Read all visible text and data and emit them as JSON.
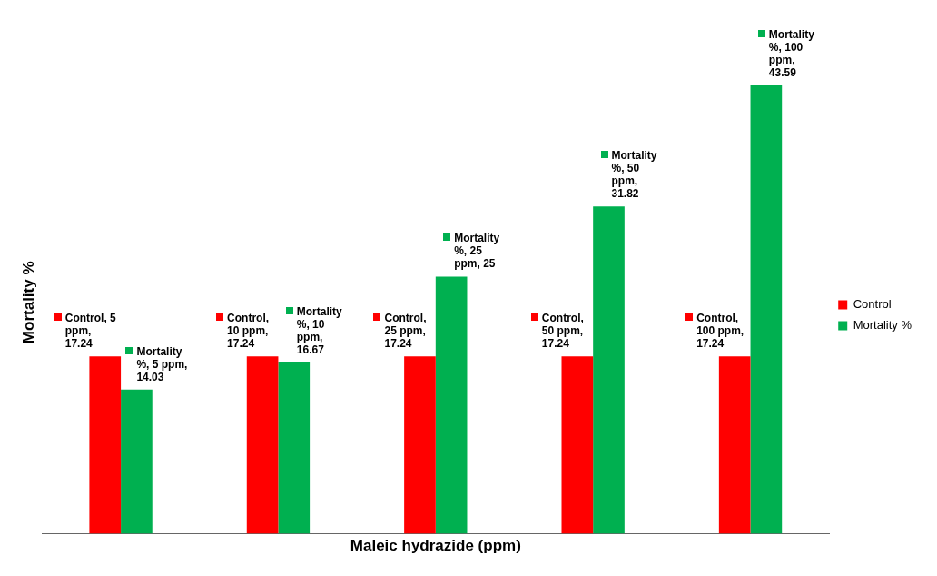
{
  "chart_data": {
    "type": "bar",
    "xlabel": "Maleic hydrazide (ppm)",
    "ylabel": "Mortality %",
    "categories": [
      null,
      null,
      null,
      null,
      null
    ],
    "series": [
      {
        "name": "Control",
        "color": "#ff0000",
        "values": [
          17.24,
          17.24,
          17.24,
          17.24,
          17.24
        ],
        "value_labels": [
          "Control, 5 ppm, 17.24",
          "Control, 10 ppm, 17.24",
          "Control, 25 ppm, 17.24",
          "Control, 50 ppm, 17.24",
          "Control, 100 ppm, 17.24"
        ]
      },
      {
        "name": "Mortality %",
        "color": "#00b050",
        "values": [
          14.03,
          16.67,
          25,
          31.82,
          43.59
        ],
        "value_labels": [
          "Mortality %, 5 ppm, 14.03",
          "Mortality %, 10 ppm, 16.67",
          "Mortality %, 25 ppm, 25",
          "Mortality %, 50 ppm, 31.82",
          "Mortality %, 100 ppm, 43.59"
        ]
      }
    ],
    "legend": "right",
    "grid": false,
    "tick_labels": false
  }
}
